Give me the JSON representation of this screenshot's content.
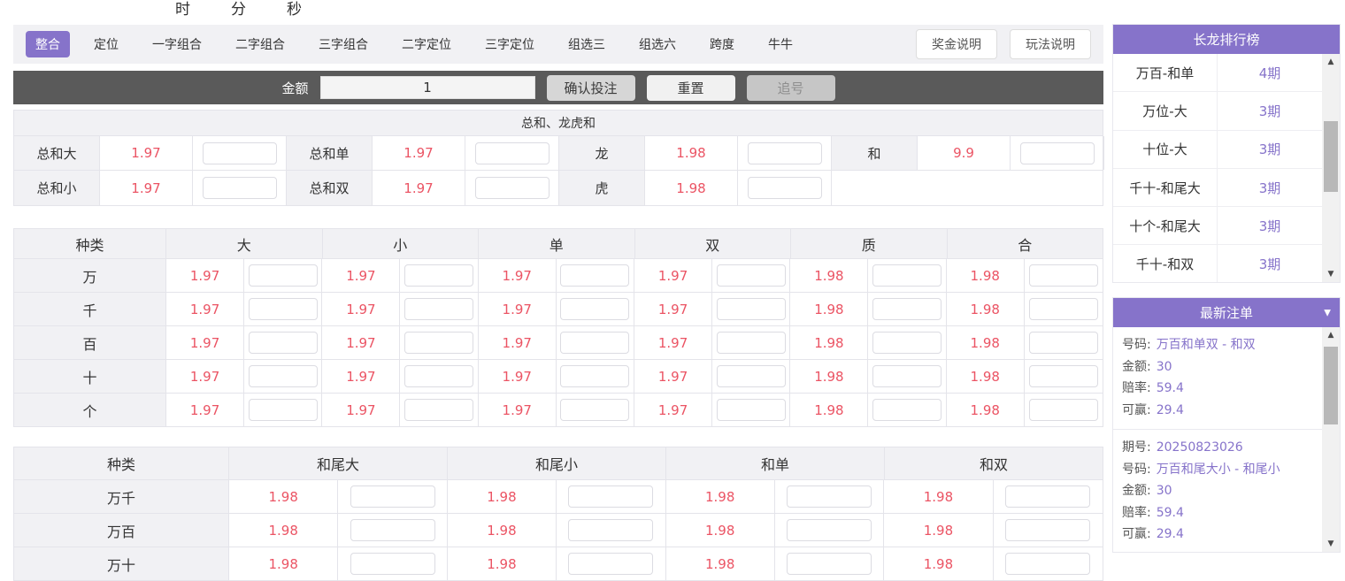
{
  "colors": {
    "accent_purple": "#8673ca",
    "odds_red": "#eb5464",
    "toolbar_dark": "#5a5a5a"
  },
  "countdown": {
    "hour_label": "时",
    "minute_label": "分",
    "second_label": "秒"
  },
  "nav": {
    "tabs": [
      "整合",
      "定位",
      "一字组合",
      "二字组合",
      "三字组合",
      "二字定位",
      "三字定位",
      "组选三",
      "组选六",
      "跨度",
      "牛牛"
    ],
    "active_tab": "整合",
    "bonus_button": "奖金说明",
    "rules_button": "玩法说明"
  },
  "toolbar": {
    "amount_label": "金额",
    "amount_value": "1",
    "confirm_button": "确认投注",
    "reset_button": "重置",
    "chase_button": "追号"
  },
  "sum_section": {
    "title": "总和、龙虎和",
    "row1": [
      {
        "label": "总和大",
        "odds": "1.97"
      },
      {
        "label": "总和单",
        "odds": "1.97"
      },
      {
        "label": "龙",
        "odds": "1.98"
      },
      {
        "label": "和",
        "odds": "9.9"
      }
    ],
    "row2": [
      {
        "label": "总和小",
        "odds": "1.97"
      },
      {
        "label": "总和双",
        "odds": "1.97"
      },
      {
        "label": "虎",
        "odds": "1.98"
      }
    ]
  },
  "position_table": {
    "headers": [
      "种类",
      "大",
      "小",
      "单",
      "双",
      "质",
      "合"
    ],
    "rows": [
      {
        "label": "万",
        "odds": [
          "1.97",
          "1.97",
          "1.97",
          "1.97",
          "1.98",
          "1.98"
        ]
      },
      {
        "label": "千",
        "odds": [
          "1.97",
          "1.97",
          "1.97",
          "1.97",
          "1.98",
          "1.98"
        ]
      },
      {
        "label": "百",
        "odds": [
          "1.97",
          "1.97",
          "1.97",
          "1.97",
          "1.98",
          "1.98"
        ]
      },
      {
        "label": "十",
        "odds": [
          "1.97",
          "1.97",
          "1.97",
          "1.97",
          "1.98",
          "1.98"
        ]
      },
      {
        "label": "个",
        "odds": [
          "1.97",
          "1.97",
          "1.97",
          "1.97",
          "1.98",
          "1.98"
        ]
      }
    ]
  },
  "tail_table": {
    "headers": [
      "种类",
      "和尾大",
      "和尾小",
      "和单",
      "和双"
    ],
    "rows": [
      {
        "label": "万千",
        "odds": [
          "1.98",
          "1.98",
          "1.98",
          "1.98"
        ]
      },
      {
        "label": "万百",
        "odds": [
          "1.98",
          "1.98",
          "1.98",
          "1.98"
        ]
      },
      {
        "label": "万十",
        "odds": [
          "1.98",
          "1.98",
          "1.98",
          "1.98"
        ]
      }
    ]
  },
  "dragon_panel": {
    "title": "长龙排行榜",
    "rows": [
      {
        "name": "万百-和单",
        "streak": "4期"
      },
      {
        "name": "万位-大",
        "streak": "3期"
      },
      {
        "name": "十位-大",
        "streak": "3期"
      },
      {
        "name": "千十-和尾大",
        "streak": "3期"
      },
      {
        "name": "十个-和尾大",
        "streak": "3期"
      },
      {
        "name": "千十-和双",
        "streak": "3期"
      }
    ]
  },
  "orders_panel": {
    "title": "最新注单",
    "labels": {
      "issue": "期号:",
      "number": "号码:",
      "amount": "金额:",
      "odds": "赔率:",
      "win": "可赢:"
    },
    "entries": [
      {
        "number": "万百和单双 - 和双",
        "amount": "30",
        "odds": "59.4",
        "win": "29.4"
      },
      {
        "issue": "20250823026",
        "number": "万百和尾大小 - 和尾小",
        "amount": "30",
        "odds": "59.4",
        "win": "29.4"
      }
    ]
  }
}
